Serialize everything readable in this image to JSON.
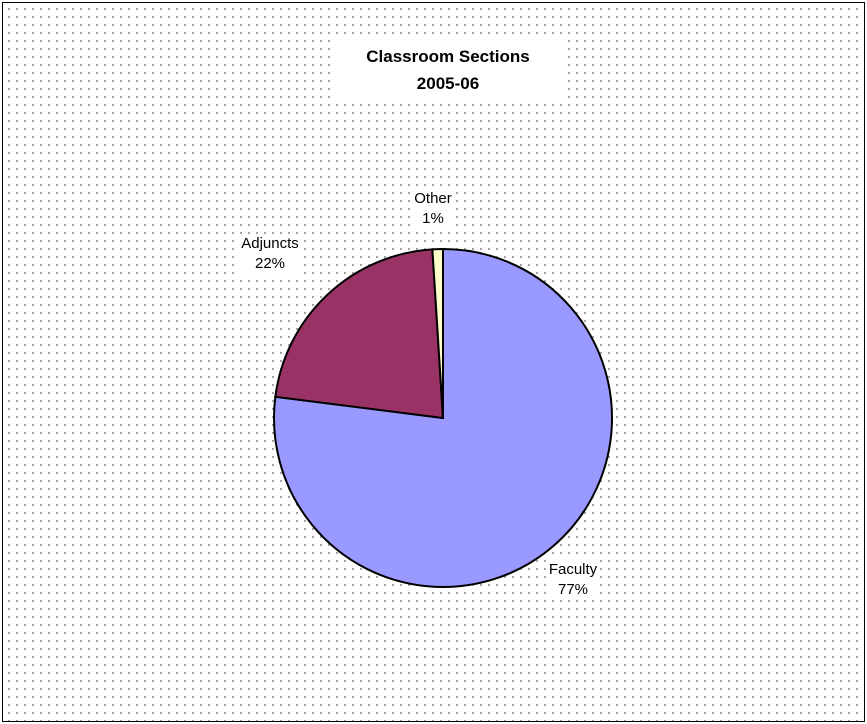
{
  "chart_data": {
    "type": "pie",
    "title": "Classroom Sections",
    "subtitle": "2005-06",
    "slices": [
      {
        "label": "Faculty",
        "value": 77,
        "display": "77%",
        "color": "#9999ff"
      },
      {
        "label": "Adjuncts",
        "value": 22,
        "display": "22%",
        "color": "#993366"
      },
      {
        "label": "Other",
        "value": 1,
        "display": "1%",
        "color": "#ffffcc"
      }
    ],
    "legend": false
  }
}
